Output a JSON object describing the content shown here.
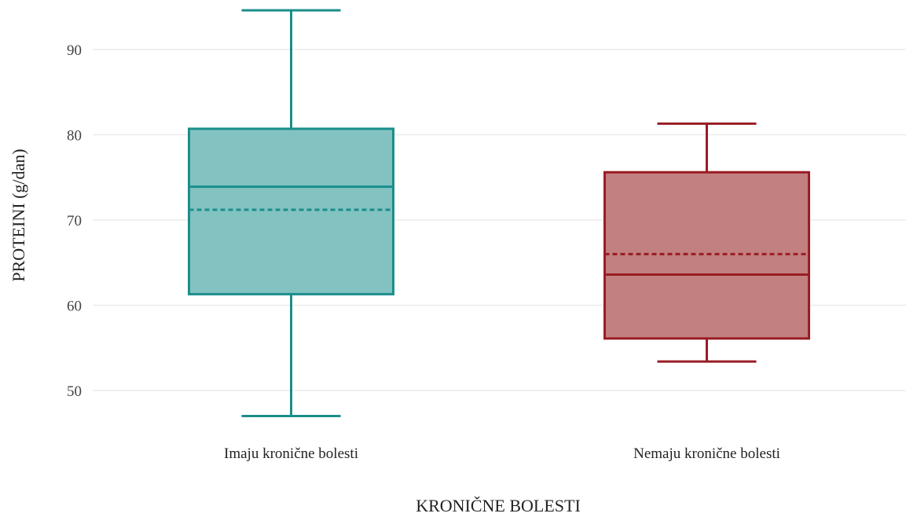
{
  "chart_data": {
    "type": "box",
    "title": "",
    "xlabel": "KRONIČNE BOLESTI",
    "ylabel": "PROTEINI (g/dan)",
    "ylim": [
      44,
      96
    ],
    "yticks": [
      50,
      60,
      70,
      80,
      90
    ],
    "grid": true,
    "categories": [
      "Imaju kronične bolesti",
      "Nemaju kronične bolesti"
    ],
    "boxes": [
      {
        "category": "Imaju kronične bolesti",
        "min": 47,
        "q1": 61.3,
        "median": 73.9,
        "mean": 71.2,
        "q3": 80.7,
        "max": 94.6,
        "color": "#1a8e8c",
        "fill": "#82c2c1"
      },
      {
        "category": "Nemaju kronične bolesti",
        "min": 53.4,
        "q1": 56.1,
        "median": 63.6,
        "mean": 66,
        "q3": 75.6,
        "max": 81.3,
        "color": "#9a1c24",
        "fill": "#c28080"
      }
    ]
  }
}
